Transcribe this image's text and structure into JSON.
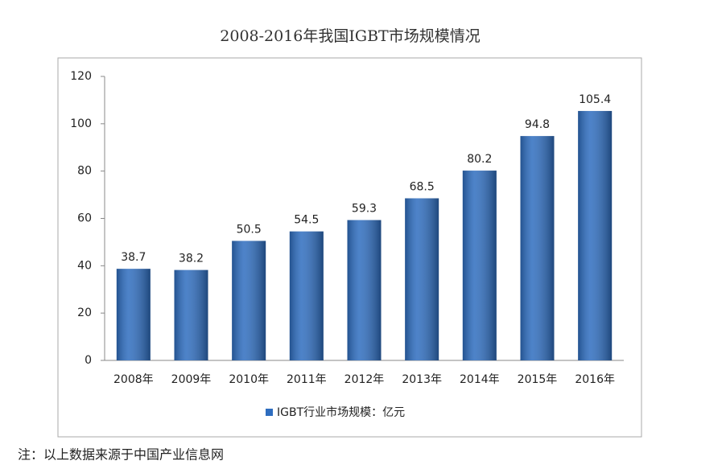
{
  "chart_data": {
    "type": "bar",
    "title": "2008-2016年我国IGBT市场规模情况",
    "categories": [
      "2008年",
      "2009年",
      "2010年",
      "2011年",
      "2012年",
      "2013年",
      "2014年",
      "2015年",
      "2016年"
    ],
    "series": [
      {
        "name": "IGBT行业市场规模：亿元",
        "color": "#2e6dbf",
        "values": [
          38.7,
          38.2,
          50.5,
          54.5,
          59.3,
          68.5,
          80.2,
          94.8,
          105.4
        ]
      }
    ],
    "ylim": [
      0,
      120
    ],
    "yticks": [
      0,
      20,
      40,
      60,
      80,
      100,
      120
    ],
    "grid": false,
    "legend": "bottom"
  },
  "note": "注：以上数据来源于中国产业信息网"
}
